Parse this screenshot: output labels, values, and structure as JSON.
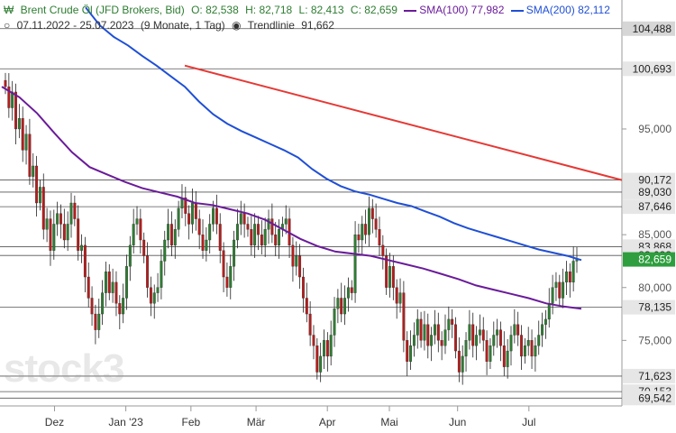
{
  "header": {
    "instrument": "Brent Crude Öl (JFD Brokers, Bid)",
    "open": "O: 82,538",
    "high": "H: 82,718",
    "low": "L: 82,413",
    "close": "C: 82,659",
    "sma100_label": "SMA(100)",
    "sma100_value": "77,982",
    "sma200_label": "SMA(200)",
    "sma200_value": "82,112",
    "range": "07.11.2022 - 25.07.2023",
    "period": "(9 Monate, 1 Tag)",
    "trend_label": "Trendlinie",
    "trend_value": "91,662"
  },
  "watermark": "stock3",
  "colors": {
    "up_candle": "#2e7d32",
    "down_candle": "#b71c1c",
    "sma100": "#6a1b9a",
    "sma200": "#1f4fd6",
    "trendline": "#e53935",
    "price_tag": "#2e9e3e"
  },
  "chart_data": {
    "type": "candlestick",
    "ylim": [
      68.8,
      107.2
    ],
    "x_months": [
      "Dez",
      "Jan '23",
      "Feb",
      "Mär",
      "Apr",
      "Mai",
      "Jun",
      "Jul"
    ],
    "y_ticks": [
      75,
      80,
      85,
      95
    ],
    "y_tick_labels": [
      "75,000",
      "80,000",
      "85,000",
      "95,000"
    ],
    "levels": [
      {
        "value": 104.488,
        "label": "104,488",
        "highlight": true
      },
      {
        "value": 100.693,
        "label": "100,693"
      },
      {
        "value": 90.172,
        "label": "90,172"
      },
      {
        "value": 89.03,
        "label": "89,030"
      },
      {
        "value": 87.646,
        "label": "87,646"
      },
      {
        "value": 83.868,
        "label": "83,868"
      },
      {
        "value": 83.033,
        "label": "83,033"
      },
      {
        "value": 78.135,
        "label": "78,135"
      },
      {
        "value": 71.623,
        "label": "71,623"
      },
      {
        "value": 70.153,
        "label": "70,153"
      },
      {
        "value": 69.542,
        "label": "69,542"
      }
    ],
    "last_price": {
      "value": 82.659,
      "label": "82,659"
    },
    "trendline": {
      "start": 101.0,
      "end": 90.17
    },
    "sma200": [
      106.5,
      104.8,
      103.7,
      102.9,
      101.9,
      101.0,
      100.0,
      99.0,
      97.6,
      96.4,
      95.5,
      94.8,
      94.2,
      93.6,
      93.0,
      92.3,
      91.2,
      90.3,
      89.6,
      89.1,
      88.8,
      88.4,
      88.0,
      87.7,
      87.2,
      86.7,
      86.1,
      85.6,
      85.2,
      84.8,
      84.4,
      84.0,
      83.6,
      83.3,
      83.0,
      82.6
    ],
    "sma100": [
      99.0,
      98.0,
      96.5,
      94.6,
      92.8,
      91.4,
      90.7,
      90.0,
      89.4,
      89.0,
      88.6,
      88.0,
      87.8,
      87.4,
      87.0,
      86.4,
      85.5,
      84.6,
      83.9,
      83.4,
      83.2,
      83.0,
      82.6,
      82.2,
      81.8,
      81.3,
      80.8,
      80.2,
      79.8,
      79.4,
      79.0,
      78.5,
      78.2,
      78.0
    ],
    "closes": [
      99.0,
      97.0,
      98.5,
      95.0,
      96.0,
      93.0,
      94.5,
      90.5,
      91.5,
      88.0,
      89.5,
      85.5,
      86.5,
      83.5,
      86.0,
      87.0,
      86.0,
      84.5,
      86.0,
      88.0,
      86.5,
      83.5,
      84.0,
      81.0,
      79.0,
      77.5,
      76.0,
      77.5,
      79.5,
      81.5,
      79.5,
      80.5,
      78.5,
      77.5,
      79.0,
      82.0,
      84.0,
      86.0,
      86.5,
      84.5,
      83.0,
      80.0,
      78.5,
      79.5,
      80.0,
      82.5,
      84.5,
      86.0,
      84.0,
      85.5,
      87.5,
      88.5,
      87.0,
      86.0,
      88.0,
      86.5,
      85.0,
      83.5,
      84.5,
      86.0,
      87.5,
      86.0,
      83.5,
      81.0,
      80.0,
      82.0,
      84.5,
      86.0,
      87.0,
      86.0,
      85.5,
      84.0,
      86.0,
      85.0,
      84.0,
      85.5,
      86.5,
      85.0,
      84.0,
      85.5,
      86.0,
      86.5,
      84.0,
      82.0,
      83.0,
      81.0,
      79.0,
      77.5,
      75.5,
      74.5,
      72.0,
      73.5,
      75.0,
      73.5,
      75.5,
      78.0,
      79.0,
      77.5,
      79.0,
      80.0,
      79.5,
      85.0,
      84.5,
      86.0,
      85.0,
      87.5,
      86.5,
      85.5,
      84.0,
      83.0,
      80.0,
      82.0,
      80.0,
      78.5,
      79.5,
      75.0,
      73.0,
      74.5,
      75.5,
      77.0,
      75.0,
      76.5,
      74.5,
      75.5,
      76.5,
      75.0,
      74.5,
      76.0,
      77.0,
      76.5,
      74.0,
      72.0,
      73.5,
      75.0,
      76.5,
      74.5,
      75.5,
      76.0,
      75.0,
      73.0,
      74.5,
      75.5,
      76.0,
      74.5,
      72.5,
      74.0,
      75.5,
      76.5,
      75.5,
      73.5,
      74.5,
      75.0,
      73.5,
      74.5,
      75.5,
      76.5,
      77.0,
      78.5,
      80.0,
      80.5,
      79.0,
      80.5,
      81.5,
      80.5,
      82.5,
      82.7
    ]
  }
}
